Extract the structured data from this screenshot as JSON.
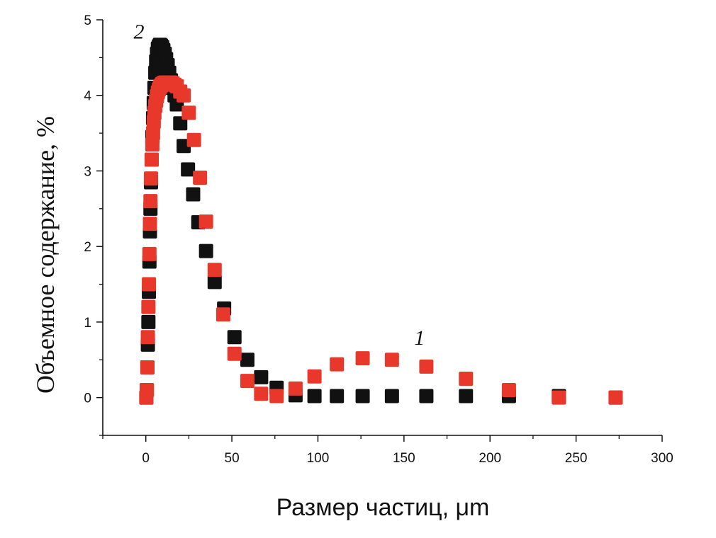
{
  "chart_data": {
    "type": "scatter",
    "title": "",
    "xlabel": "Размер частиц, μm",
    "ylabel": "Объемное содержание, %",
    "xlim": [
      -25,
      300
    ],
    "ylim": [
      -0.5,
      5
    ],
    "x_ticks": [
      0,
      50,
      100,
      150,
      200,
      250,
      300
    ],
    "y_ticks": [
      0,
      1,
      2,
      3,
      4,
      5
    ],
    "grid": false,
    "legend": "none",
    "annotations": [
      {
        "text": "2",
        "x": -4,
        "y": 4.75
      },
      {
        "text": "1",
        "x": 159,
        "y": 0.7
      }
    ],
    "series": [
      {
        "color": "#111111",
        "x": [
          0.3,
          0.6,
          0.9,
          1.2,
          1.5,
          1.8,
          2.1,
          2.4,
          2.7,
          3.0,
          3.4,
          3.8,
          4.2,
          4.6,
          5.0,
          5.5,
          6.0,
          6.5,
          7.0,
          7.6,
          8.2,
          8.8,
          9.5,
          10.2,
          11.0,
          11.8,
          12.7,
          13.6,
          14.6,
          15.6,
          16.7,
          18.0,
          20.0,
          22.0,
          24.5,
          27.5,
          30.5,
          35.0,
          40.0,
          45.5,
          51.5,
          59.0,
          67.0,
          76.0,
          87.0,
          98.0,
          111.0,
          126.0,
          143.0,
          163.0,
          186.0,
          211.0,
          240.0,
          273.0
        ],
        "y": [
          0.0,
          0.1,
          0.4,
          0.7,
          1.0,
          1.4,
          1.8,
          2.2,
          2.5,
          2.85,
          3.15,
          3.45,
          3.7,
          3.9,
          4.1,
          4.3,
          4.45,
          4.55,
          4.62,
          4.65,
          4.67,
          4.66,
          4.64,
          4.6,
          4.55,
          4.48,
          4.4,
          4.3,
          4.2,
          4.1,
          4.0,
          3.88,
          3.63,
          3.33,
          3.02,
          2.69,
          2.32,
          1.94,
          1.53,
          1.18,
          0.8,
          0.5,
          0.27,
          0.13,
          0.03,
          0.02,
          0.02,
          0.02,
          0.02,
          0.02,
          0.02,
          0.02,
          0.02,
          0.0
        ]
      },
      {
        "color": "#e8382c",
        "x": [
          0.3,
          0.6,
          0.9,
          1.2,
          1.5,
          1.8,
          2.1,
          2.4,
          2.7,
          3.0,
          3.4,
          3.8,
          4.2,
          4.6,
          5.0,
          5.5,
          6.0,
          6.5,
          7.0,
          7.6,
          8.2,
          8.8,
          9.5,
          10.2,
          11.0,
          11.8,
          12.7,
          13.6,
          14.6,
          15.6,
          16.7,
          18.0,
          20.0,
          22.0,
          25.0,
          28.0,
          31.5,
          35.0,
          40.0,
          45.0,
          51.5,
          59.0,
          67.0,
          76.0,
          87.0,
          98.0,
          111.0,
          126.0,
          143.0,
          163.0,
          186.0,
          211.0,
          240.0,
          273.0
        ],
        "y": [
          0.0,
          0.1,
          0.4,
          0.8,
          1.2,
          1.5,
          1.9,
          2.3,
          2.6,
          2.9,
          3.15,
          3.35,
          3.5,
          3.65,
          3.77,
          3.86,
          3.93,
          3.99,
          4.04,
          4.08,
          4.11,
          4.13,
          4.15,
          4.16,
          4.17,
          4.17,
          4.17,
          4.17,
          4.17,
          4.16,
          4.14,
          4.12,
          4.05,
          4.0,
          3.77,
          3.41,
          2.91,
          2.33,
          1.69,
          1.1,
          0.58,
          0.22,
          0.05,
          0.02,
          0.12,
          0.28,
          0.44,
          0.52,
          0.5,
          0.41,
          0.25,
          0.1,
          0.0,
          0.0
        ]
      }
    ]
  }
}
